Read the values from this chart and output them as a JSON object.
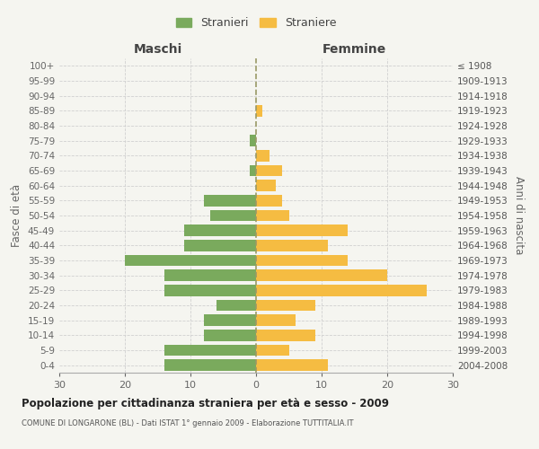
{
  "age_groups": [
    "0-4",
    "5-9",
    "10-14",
    "15-19",
    "20-24",
    "25-29",
    "30-34",
    "35-39",
    "40-44",
    "45-49",
    "50-54",
    "55-59",
    "60-64",
    "65-69",
    "70-74",
    "75-79",
    "80-84",
    "85-89",
    "90-94",
    "95-99",
    "100+"
  ],
  "birth_years": [
    "2004-2008",
    "1999-2003",
    "1994-1998",
    "1989-1993",
    "1984-1988",
    "1979-1983",
    "1974-1978",
    "1969-1973",
    "1964-1968",
    "1959-1963",
    "1954-1958",
    "1949-1953",
    "1944-1948",
    "1939-1943",
    "1934-1938",
    "1929-1933",
    "1924-1928",
    "1919-1923",
    "1914-1918",
    "1909-1913",
    "≤ 1908"
  ],
  "maschi": [
    14,
    14,
    8,
    8,
    6,
    14,
    14,
    20,
    11,
    11,
    7,
    8,
    0,
    1,
    0,
    1,
    0,
    0,
    0,
    0,
    0
  ],
  "femmine": [
    11,
    5,
    9,
    6,
    9,
    26,
    20,
    14,
    11,
    14,
    5,
    4,
    3,
    4,
    2,
    0,
    0,
    1,
    0,
    0,
    0
  ],
  "bar_color_maschi": "#7aaa5d",
  "bar_color_femmine": "#f5bc42",
  "title": "Popolazione per cittadinanza straniera per età e sesso - 2009",
  "subtitle": "COMUNE DI LONGARONE (BL) - Dati ISTAT 1° gennaio 2009 - Elaborazione TUTTITALIA.IT",
  "legend_maschi": "Stranieri",
  "legend_femmine": "Straniere",
  "label_left": "Maschi",
  "label_right": "Femmine",
  "ylabel_left": "Fasce di età",
  "ylabel_right": "Anni di nascita",
  "xlim": 30,
  "background_color": "#f5f5f0",
  "grid_color": "#d0d0d0"
}
